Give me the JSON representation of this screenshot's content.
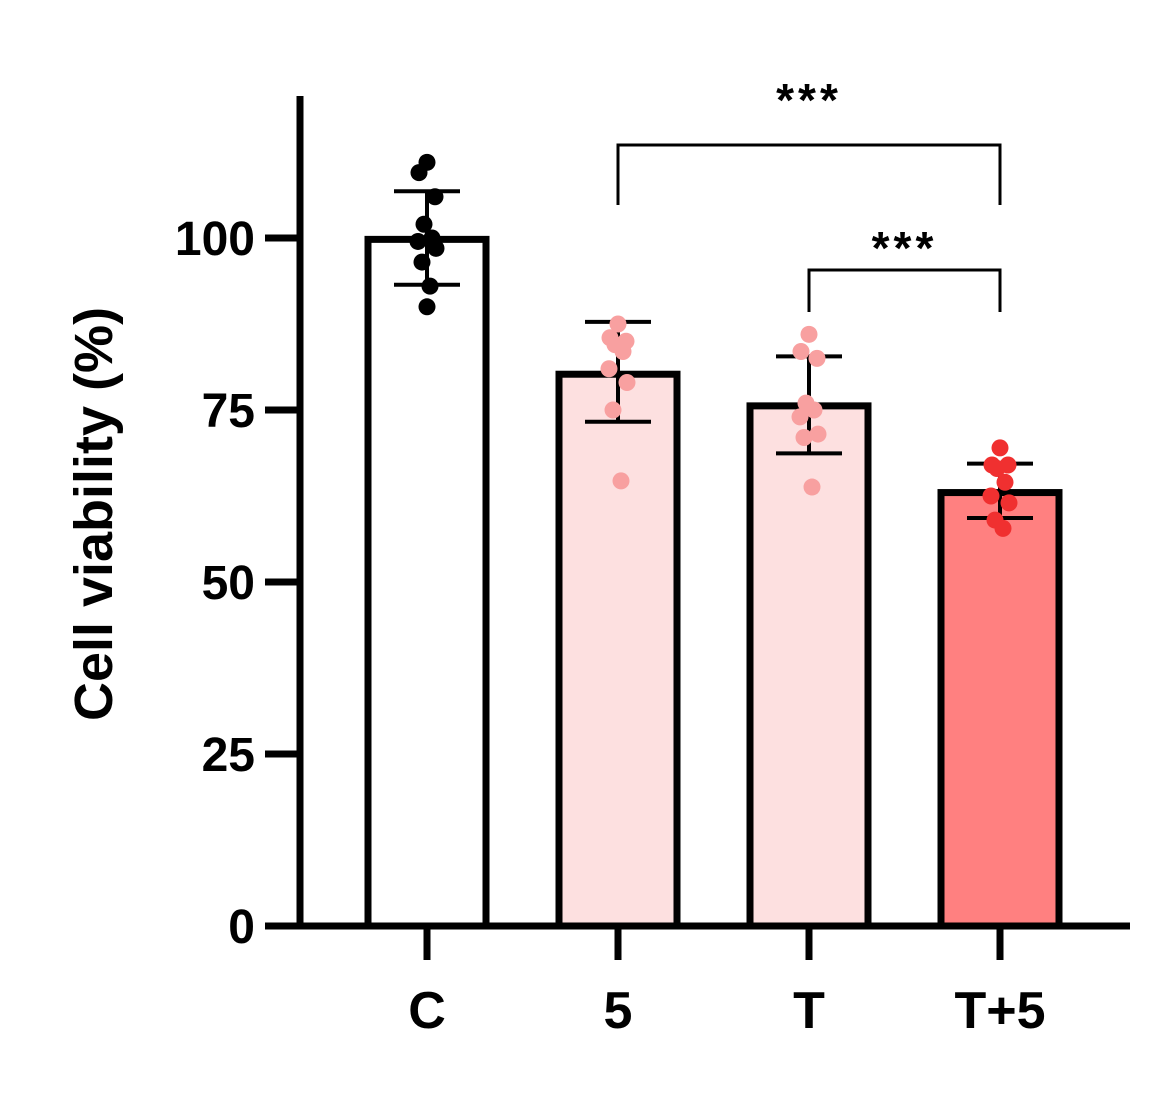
{
  "chart_data": {
    "type": "bar",
    "title": "",
    "xlabel": "",
    "ylabel": "Cell viability (%)",
    "ylim": [
      0,
      120
    ],
    "yticks": [
      0,
      25,
      50,
      75,
      100
    ],
    "yticks_labels": [
      "0",
      "25",
      "50",
      "75",
      "100"
    ],
    "categories": [
      "C",
      "5",
      "T",
      "T+5"
    ],
    "values": [
      99.8,
      80.2,
      75.6,
      63.0
    ],
    "error_upper": [
      106.8,
      87.8,
      82.8,
      67.2
    ],
    "error_lower": [
      93.2,
      73.3,
      68.7,
      59.3
    ],
    "fill_colors": [
      "#ffffff",
      "#fde0e0",
      "#fde0e0",
      "#ff8080"
    ],
    "point_colors": [
      "#000000",
      "#f8a0a0",
      "#f8a0a0",
      "#f03030"
    ],
    "points": [
      [
        111.0,
        109.5,
        106.0,
        102.0,
        100.0,
        99.5,
        98.5,
        96.5,
        93.0,
        90.0
      ],
      [
        87.5,
        85.5,
        85.0,
        84.5,
        83.5,
        81.0,
        79.0,
        75.0,
        64.7
      ],
      [
        86.0,
        83.5,
        82.5,
        76.0,
        75.0,
        74.0,
        71.5,
        71.0,
        63.8
      ],
      [
        69.5,
        67.0,
        67.0,
        66.5,
        64.5,
        62.5,
        61.5,
        59.0,
        57.8
      ]
    ],
    "grid": false,
    "legend": "none",
    "significance": [
      {
        "from": "5",
        "to": "T+5",
        "label": "***"
      },
      {
        "from": "T",
        "to": "T+5",
        "label": "***"
      }
    ]
  }
}
